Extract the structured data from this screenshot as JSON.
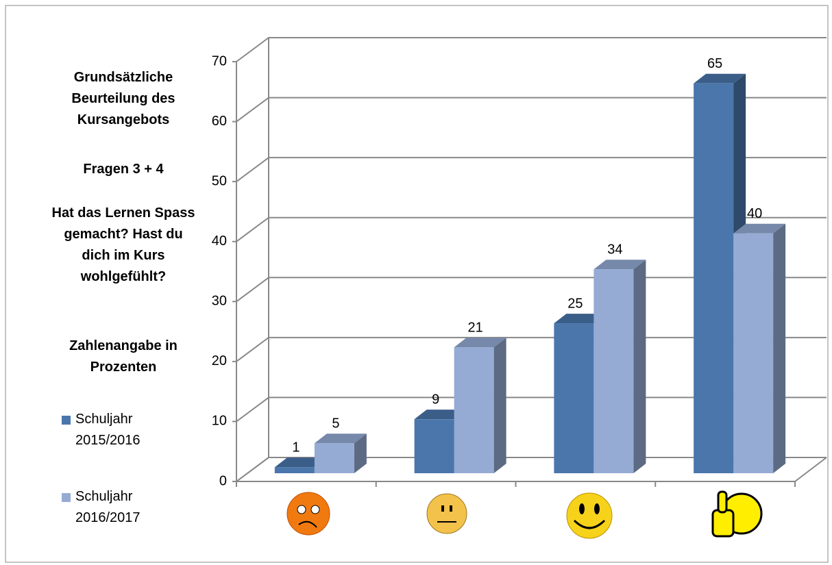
{
  "chart_data": {
    "type": "bar3d",
    "title": "Grundsätzliche Beurteilung des Kursangebots",
    "subtitle": "Fragen 3 + 4",
    "annotations": [
      "Hat das Lernen Spass gemacht? Hast du dich im Kurs wohlgefühlt?",
      "Zahlenangabe in Prozenten"
    ],
    "categories": [
      null,
      null,
      null,
      null
    ],
    "series": [
      {
        "name": "Schuljahr 2015/2016",
        "color": "#4a76ab",
        "values": [
          1,
          9,
          25,
          65
        ]
      },
      {
        "name": "Schuljahr 2016/2017",
        "color": "#95abd4",
        "values": [
          5,
          21,
          34,
          40
        ]
      }
    ],
    "ylim": [
      0,
      70
    ],
    "yticks": [
      0,
      10,
      20,
      30,
      40,
      50,
      60,
      70
    ],
    "grid": true,
    "legend": "left"
  }
}
